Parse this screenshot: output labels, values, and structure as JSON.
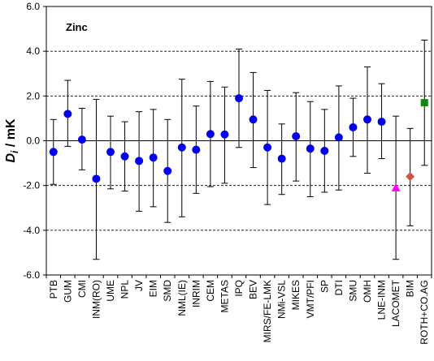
{
  "chart_data": {
    "type": "scatter",
    "annotation": "Zinc",
    "ylabel": {
      "symbol": "D",
      "subscript": "i",
      "unit": " / mK"
    },
    "ylim": [
      -6.0,
      6.0
    ],
    "yticks": [
      -6.0,
      -4.0,
      -2.0,
      0.0,
      2.0,
      4.0,
      6.0
    ],
    "ytick_labels": [
      "-6.0",
      "-4.0",
      "-2.0",
      "0.0",
      "2.0",
      "4.0",
      "6.0"
    ],
    "grid": "horizontal dashed at ±2 and ±4",
    "categories": [
      "PTB",
      "GUM",
      "CMI",
      "INM(RO)",
      "UME",
      "NPL",
      "JV",
      "EIM",
      "SMD",
      "NML(IE)",
      "INRIM",
      "CEM",
      "METAS",
      "IPQ",
      "BEV",
      "MIRS/FE-LMK",
      "NMi-VSL",
      "MIKES",
      "VMT/PFI",
      "SP",
      "DTI",
      "SMU",
      "OMH",
      "LNE-INM",
      "LACOMET",
      "BIM",
      "ROTH+CO.AG"
    ],
    "values": [
      -0.5,
      1.2,
      0.05,
      -1.7,
      -0.5,
      -0.7,
      -0.9,
      -0.75,
      -1.35,
      -0.3,
      -0.4,
      0.3,
      0.28,
      1.9,
      0.95,
      -0.3,
      -0.8,
      0.2,
      -0.35,
      -0.45,
      0.15,
      0.6,
      0.95,
      0.85,
      -2.1,
      -1.6,
      1.7
    ],
    "upper": [
      0.95,
      2.7,
      1.45,
      1.85,
      1.1,
      0.85,
      1.3,
      1.4,
      0.95,
      2.75,
      1.55,
      2.65,
      2.4,
      4.1,
      3.05,
      2.25,
      0.75,
      2.15,
      1.75,
      1.4,
      2.45,
      1.9,
      3.3,
      2.55,
      1.1,
      0.55,
      4.5
    ],
    "lower": [
      -1.95,
      -0.25,
      -1.3,
      -5.3,
      -2.15,
      -2.25,
      -3.15,
      -2.95,
      -3.65,
      -3.4,
      -2.35,
      -2.05,
      -1.9,
      -0.3,
      -1.2,
      -2.85,
      -2.4,
      -1.8,
      -2.5,
      -2.3,
      -2.2,
      -0.7,
      -1.45,
      -0.8,
      -5.3,
      -3.8,
      -1.1
    ],
    "markers": [
      "circle",
      "circle",
      "circle",
      "circle",
      "circle",
      "circle",
      "circle",
      "circle",
      "circle",
      "circle",
      "circle",
      "circle",
      "circle",
      "circle",
      "circle",
      "circle",
      "circle",
      "circle",
      "circle",
      "circle",
      "circle",
      "circle",
      "circle",
      "circle",
      "triangle",
      "diamond",
      "square"
    ],
    "colors": {
      "circle": "#0000ee",
      "triangle": "#ff00ff",
      "diamond": "#cc5544",
      "square": "#118811"
    }
  }
}
